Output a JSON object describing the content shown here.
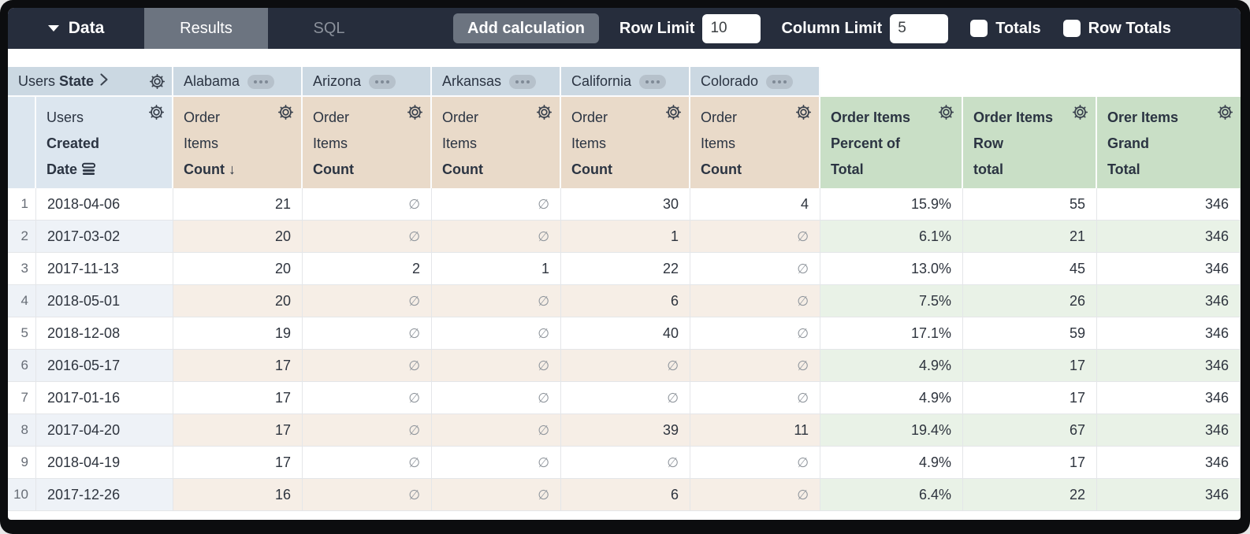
{
  "toolbar": {
    "data_label": "Data",
    "tabs": [
      {
        "label": "Results",
        "active": true
      },
      {
        "label": "SQL",
        "active": false
      }
    ],
    "add_calculation_label": "Add calculation",
    "row_limit_label": "Row Limit",
    "row_limit_value": "10",
    "column_limit_label": "Column Limit",
    "column_limit_value": "5",
    "totals_label": "Totals",
    "totals_checked": false,
    "row_totals_label": "Row Totals",
    "row_totals_checked": false
  },
  "pivot": {
    "field_prefix": "Users",
    "field_name": "State",
    "values": [
      "Alabama",
      "Arizona",
      "Arkansas",
      "California",
      "Colorado"
    ]
  },
  "row_dimension": {
    "line1": "Users",
    "line2": "Created",
    "line3": "Date"
  },
  "measure_headers": [
    {
      "line1": "Order",
      "line2": "Items",
      "line3": "Count",
      "sorted": true,
      "sort_arrow": "↓"
    },
    {
      "line1": "Order",
      "line2": "Items",
      "line3": "Count",
      "sorted": false,
      "sort_arrow": ""
    },
    {
      "line1": "Order",
      "line2": "Items",
      "line3": "Count",
      "sorted": false,
      "sort_arrow": ""
    },
    {
      "line1": "Order",
      "line2": "Items",
      "line3": "Count",
      "sorted": false,
      "sort_arrow": ""
    },
    {
      "line1": "Order",
      "line2": "Items",
      "line3": "Count",
      "sorted": false,
      "sort_arrow": ""
    }
  ],
  "calc_headers": [
    {
      "line1": "Order Items",
      "line2": "Percent of",
      "line3": "Total"
    },
    {
      "line1": "Order Items",
      "line2": "Row",
      "line3": "total"
    },
    {
      "line1": "Orer Items",
      "line2": "Grand",
      "line3": "Total"
    }
  ],
  "null_symbol": "∅",
  "rows": [
    {
      "n": "1",
      "date": "2018-04-06",
      "values": [
        "21",
        null,
        null,
        "30",
        "4"
      ],
      "calcs": [
        "15.9%",
        "55",
        "346"
      ]
    },
    {
      "n": "2",
      "date": "2017-03-02",
      "values": [
        "20",
        null,
        null,
        "1",
        null
      ],
      "calcs": [
        "6.1%",
        "21",
        "346"
      ]
    },
    {
      "n": "3",
      "date": "2017-11-13",
      "values": [
        "20",
        "2",
        "1",
        "22",
        null
      ],
      "calcs": [
        "13.0%",
        "45",
        "346"
      ]
    },
    {
      "n": "4",
      "date": "2018-05-01",
      "values": [
        "20",
        null,
        null,
        "6",
        null
      ],
      "calcs": [
        "7.5%",
        "26",
        "346"
      ]
    },
    {
      "n": "5",
      "date": "2018-12-08",
      "values": [
        "19",
        null,
        null,
        "40",
        null
      ],
      "calcs": [
        "17.1%",
        "59",
        "346"
      ]
    },
    {
      "n": "6",
      "date": "2016-05-17",
      "values": [
        "17",
        null,
        null,
        null,
        null
      ],
      "calcs": [
        "4.9%",
        "17",
        "346"
      ]
    },
    {
      "n": "7",
      "date": "2017-01-16",
      "values": [
        "17",
        null,
        null,
        null,
        null
      ],
      "calcs": [
        "4.9%",
        "17",
        "346"
      ]
    },
    {
      "n": "8",
      "date": "2017-04-20",
      "values": [
        "17",
        null,
        null,
        "39",
        "11"
      ],
      "calcs": [
        "19.4%",
        "67",
        "346"
      ]
    },
    {
      "n": "9",
      "date": "2018-04-19",
      "values": [
        "17",
        null,
        null,
        null,
        null
      ],
      "calcs": [
        "4.9%",
        "17",
        "346"
      ]
    },
    {
      "n": "10",
      "date": "2017-12-26",
      "values": [
        "16",
        null,
        null,
        "6",
        null
      ],
      "calcs": [
        "6.4%",
        "22",
        "346"
      ]
    }
  ],
  "colors": {
    "topbar_bg": "#262d3c",
    "active_tab_bg": "#6c7480",
    "pivot_header_bg": "#cbd8e2",
    "dimension_header_bg": "#dce6ef",
    "measure_header_bg": "#e9dac9",
    "calc_header_bg": "#c9dfc6",
    "stripe_blue": "#eef2f7",
    "stripe_tan": "#f6eee6",
    "stripe_green": "#e9f2e7",
    "null_gray": "#8f959c"
  }
}
